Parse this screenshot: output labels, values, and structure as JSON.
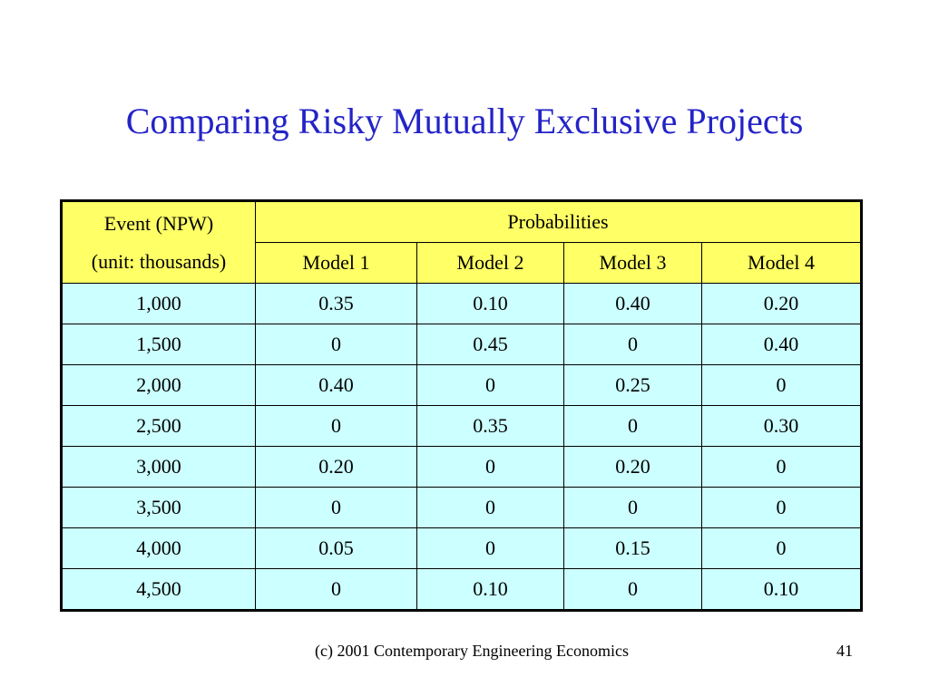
{
  "colors": {
    "title": "#2323c8",
    "header_bg": "#ffff66",
    "body_bg": "#ccffff",
    "border": "#000000"
  },
  "slide": {
    "title": "Comparing Risky Mutually Exclusive Projects",
    "footer": "(c) 2001 Contemporary Engineering Economics",
    "page_number": "41"
  },
  "table": {
    "event_header_line1": "Event (NPW)",
    "event_header_line2": "(unit: thousands)",
    "group_header": "Probabilities",
    "model_headers": [
      "Model 1",
      "Model 2",
      "Model 3",
      "Model 4"
    ],
    "rows": [
      {
        "event": "1,000",
        "values": [
          "0.35",
          "0.10",
          "0.40",
          "0.20"
        ]
      },
      {
        "event": "1,500",
        "values": [
          "0",
          "0.45",
          "0",
          "0.40"
        ]
      },
      {
        "event": "2,000",
        "values": [
          "0.40",
          "0",
          "0.25",
          "0"
        ]
      },
      {
        "event": "2,500",
        "values": [
          "0",
          "0.35",
          "0",
          "0.30"
        ]
      },
      {
        "event": "3,000",
        "values": [
          "0.20",
          "0",
          "0.20",
          "0"
        ]
      },
      {
        "event": "3,500",
        "values": [
          "0",
          "0",
          "0",
          "0"
        ]
      },
      {
        "event": "4,000",
        "values": [
          "0.05",
          "0",
          "0.15",
          "0"
        ]
      },
      {
        "event": "4,500",
        "values": [
          "0",
          "0.10",
          "0",
          "0.10"
        ]
      }
    ]
  }
}
